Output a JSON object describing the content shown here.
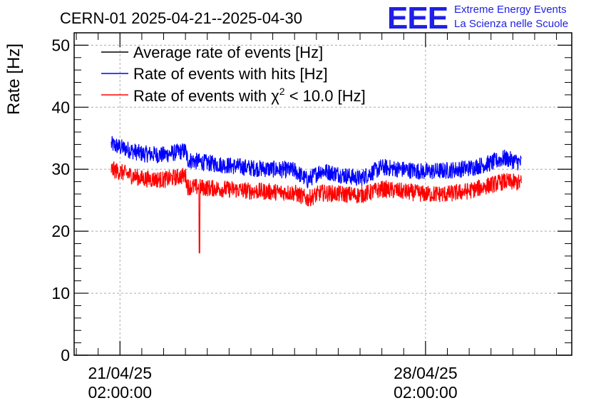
{
  "chart_data": {
    "type": "line",
    "title": "CERN-01 2025-04-21--2025-04-30",
    "ylabel": "Rate [Hz]",
    "xlabel": "",
    "ylim": [
      0,
      52
    ],
    "y_ticks": [
      "0",
      "10",
      "20",
      "30",
      "40",
      "50"
    ],
    "x_ticks": [
      {
        "line1": "21/04/25",
        "line2": "02:00:00",
        "day": 0
      },
      {
        "line1": "28/04/25",
        "line2": "02:00:00",
        "day": 7
      }
    ],
    "x_range_days": [
      -1.05,
      10.35
    ],
    "grid": true,
    "legend_position": "top-left",
    "series": [
      {
        "name": "Average rate of events [Hz]",
        "color": "#000000",
        "x_days": [],
        "values": []
      },
      {
        "name": "Rate of events with hits [Hz]",
        "color": "#0000ff",
        "noise": 1.4,
        "x_days": [
          -0.2,
          0.5,
          1.0,
          1.5,
          1.55,
          2.0,
          3.0,
          4.0,
          4.3,
          4.6,
          5.5,
          6.0,
          7.0,
          7.5,
          8.0,
          8.5,
          8.8,
          9.2
        ],
        "values": [
          34.0,
          32.5,
          32.3,
          33.0,
          31.5,
          31.0,
          30.2,
          29.8,
          28.2,
          29.8,
          28.5,
          30.3,
          29.6,
          29.8,
          30.2,
          31.0,
          31.8,
          31.0
        ]
      },
      {
        "name": "Rate of events with chi2 < 10.0 [Hz]",
        "label_main": "Rate of events with ",
        "label_symbol": "χ",
        "label_sup": "2",
        "label_rest": " < 10.0 [Hz]",
        "color": "#ff0000",
        "noise": 1.4,
        "dip": {
          "day": 1.82,
          "value": 16.5
        },
        "x_days": [
          -0.2,
          0.5,
          1.0,
          1.5,
          1.55,
          2.0,
          3.0,
          4.0,
          4.3,
          4.6,
          5.5,
          6.0,
          7.0,
          7.5,
          8.0,
          8.5,
          8.8,
          9.2
        ],
        "values": [
          30.0,
          28.5,
          28.3,
          29.0,
          27.2,
          27.0,
          26.5,
          26.2,
          25.2,
          26.2,
          25.8,
          26.8,
          26.0,
          26.0,
          26.5,
          27.5,
          28.0,
          27.8
        ]
      }
    ]
  },
  "logo": {
    "letters": "EEE",
    "line1": "Extreme Energy Events",
    "line2": "La Scienza nelle Scuole"
  }
}
